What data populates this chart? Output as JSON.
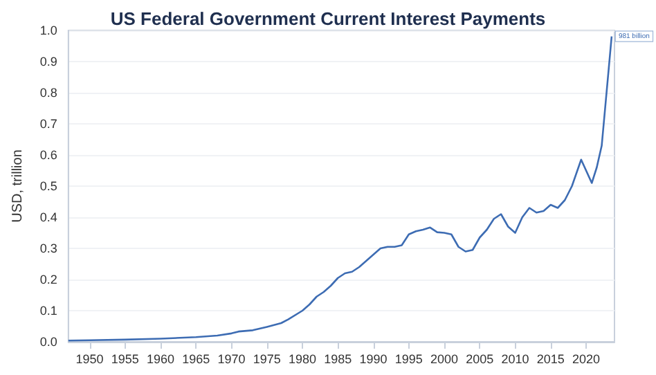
{
  "chart_data": {
    "type": "line",
    "title": "US Federal Government Current Interest Payments",
    "ylabel": "USD, trillion",
    "x": [
      1947,
      1950,
      1955,
      1960,
      1965,
      1968,
      1970,
      1971,
      1973,
      1975,
      1977,
      1978,
      1980,
      1981,
      1982,
      1983,
      1984,
      1985,
      1986,
      1987,
      1988,
      1989,
      1990,
      1991,
      1992,
      1993,
      1994,
      1995,
      1996,
      1997,
      1998,
      1999,
      2000,
      2001,
      2002,
      2003,
      2004,
      2005,
      2006,
      2007,
      2008,
      2009,
      2010,
      2011,
      2012,
      2013,
      2014,
      2015,
      2016,
      2017,
      2018,
      2019.3,
      2020,
      2020.8,
      2021.5,
      2022.2,
      2022.8,
      2023.2,
      2023.6
    ],
    "series": [
      {
        "color": "#3d6cb3",
        "values": [
          0.004,
          0.005,
          0.007,
          0.01,
          0.015,
          0.02,
          0.027,
          0.033,
          0.037,
          0.048,
          0.06,
          0.072,
          0.1,
          0.12,
          0.145,
          0.16,
          0.18,
          0.205,
          0.22,
          0.225,
          0.24,
          0.26,
          0.28,
          0.3,
          0.305,
          0.305,
          0.31,
          0.345,
          0.355,
          0.36,
          0.367,
          0.352,
          0.35,
          0.345,
          0.305,
          0.29,
          0.295,
          0.335,
          0.36,
          0.395,
          0.41,
          0.37,
          0.35,
          0.4,
          0.43,
          0.415,
          0.42,
          0.44,
          0.43,
          0.455,
          0.5,
          0.585,
          0.55,
          0.51,
          0.56,
          0.63,
          0.78,
          0.88,
          0.981
        ]
      }
    ],
    "annotations": [
      {
        "text": "981 billion",
        "x": 2023.6,
        "y": 0.981
      }
    ],
    "xlim": [
      1947,
      2024
    ],
    "xticks": [
      1950,
      1955,
      1960,
      1965,
      1970,
      1975,
      1980,
      1985,
      1990,
      1995,
      2000,
      2005,
      2010,
      2015,
      2020
    ],
    "ylim": [
      0,
      1
    ],
    "yticks": [
      {
        "value": 0,
        "label": "0.0"
      },
      {
        "value": 0.1,
        "label": "0.1"
      },
      {
        "value": 0.2,
        "label": "0.2"
      },
      {
        "value": 0.3,
        "label": "0.3"
      },
      {
        "value": 0.4,
        "label": "0.4"
      },
      {
        "value": 0.5,
        "label": "0.5"
      },
      {
        "value": 0.6,
        "label": "0.6"
      },
      {
        "value": 0.7,
        "label": "0.7"
      },
      {
        "value": 0.8,
        "label": "0.8"
      },
      {
        "value": 0.9,
        "label": "0.9"
      },
      {
        "value": 1,
        "label": "1.0"
      }
    ],
    "grid": "y",
    "marker": "none",
    "line_style": "solid"
  }
}
